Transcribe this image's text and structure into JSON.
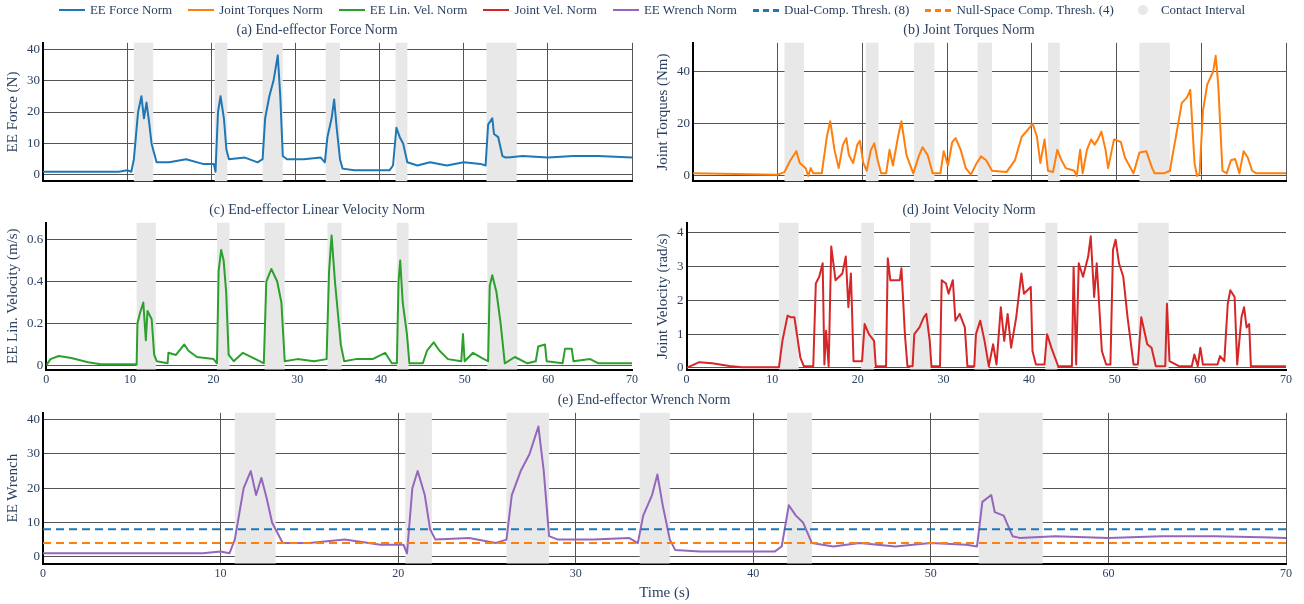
{
  "chart_data": [
    {
      "type": "line",
      "title": "(a) End-effector Force Norm",
      "ylabel": "EE Force (N)",
      "xlim": [
        0,
        70
      ],
      "xticks": [
        0,
        10,
        20,
        30,
        40,
        50,
        60,
        70
      ],
      "ylim": [
        -2,
        42
      ],
      "yticks": [
        0,
        10,
        20,
        30,
        40
      ],
      "grid": true,
      "tick_labels": "y",
      "legend": "top",
      "bands": [
        {
          "axis": "x",
          "from": 10.8,
          "to": 13.1,
          "label": "Contact Interval",
          "color": "#e8e8e8"
        },
        {
          "axis": "x",
          "from": 20.4,
          "to": 21.9,
          "color": "#e8e8e8"
        },
        {
          "axis": "x",
          "from": 26.1,
          "to": 28.5,
          "color": "#e8e8e8"
        },
        {
          "axis": "x",
          "from": 33.6,
          "to": 35.3,
          "color": "#e8e8e8"
        },
        {
          "axis": "x",
          "from": 41.9,
          "to": 43.3,
          "color": "#e8e8e8"
        },
        {
          "axis": "x",
          "from": 52.7,
          "to": 56.3,
          "color": "#e8e8e8"
        }
      ],
      "series": [
        {
          "name": "EE Force Norm",
          "color": "#1f77b4",
          "x": [
            0,
            5,
            9,
            10,
            10.5,
            10.8,
            11.3,
            11.7,
            12,
            12.3,
            12.6,
            12.9,
            13.2,
            13.5,
            15,
            17,
            19,
            20.3,
            20.5,
            20.8,
            21.1,
            21.5,
            21.8,
            22.1,
            24,
            25.5,
            26.1,
            26.4,
            26.9,
            27.4,
            27.9,
            28.2,
            28.5,
            29,
            31,
            33,
            33.5,
            33.8,
            34.3,
            34.6,
            34.9,
            35.3,
            35.6,
            37,
            39,
            40,
            41.2,
            41.6,
            42,
            42.4,
            42.8,
            43.3,
            44.5,
            46,
            48,
            50,
            52,
            52.6,
            52.9,
            53.4,
            53.6,
            54.1,
            54.6,
            55,
            57,
            60,
            63,
            66,
            70
          ],
          "values": [
            1,
            1,
            1,
            1.5,
            1,
            5,
            20,
            25,
            18,
            23,
            17,
            10,
            7,
            4,
            4,
            5,
            3.5,
            3.5,
            1,
            20,
            25,
            18,
            8,
            5,
            5.5,
            4,
            5,
            18,
            25,
            30,
            38,
            25,
            6,
            5,
            5,
            5.5,
            4,
            12,
            18,
            24,
            15,
            5,
            2,
            1.5,
            1.5,
            1.5,
            1.5,
            3,
            15,
            12,
            10,
            4,
            3,
            4,
            3,
            4,
            3.5,
            3,
            16,
            18,
            13,
            12,
            6,
            5.5,
            6,
            5.5,
            6,
            6,
            5.5
          ]
        }
      ]
    },
    {
      "type": "line",
      "title": "(b) Joint Torques Norm",
      "ylabel": "Joint Torques (Nm)",
      "xlim": [
        0,
        70
      ],
      "xticks": [
        0,
        10,
        20,
        30,
        40,
        50,
        60,
        70
      ],
      "ylim": [
        -2,
        51
      ],
      "yticks": [
        0,
        20,
        40
      ],
      "grid": true,
      "tick_labels": "y",
      "legend": "top",
      "bands": [
        {
          "axis": "x",
          "from": 10.8,
          "to": 13.1,
          "color": "#e8e8e8"
        },
        {
          "axis": "x",
          "from": 20.4,
          "to": 21.9,
          "color": "#e8e8e8"
        },
        {
          "axis": "x",
          "from": 26.1,
          "to": 28.5,
          "color": "#e8e8e8"
        },
        {
          "axis": "x",
          "from": 33.6,
          "to": 35.3,
          "color": "#e8e8e8"
        },
        {
          "axis": "x",
          "from": 41.9,
          "to": 43.3,
          "color": "#e8e8e8"
        },
        {
          "axis": "x",
          "from": 52.7,
          "to": 56.3,
          "color": "#e8e8e8"
        }
      ],
      "series": [
        {
          "name": "Joint Torques Norm",
          "color": "#ff7f0e",
          "x": [
            0,
            10,
            10.8,
            11.5,
            12.2,
            12.6,
            13.3,
            13.6,
            13.9,
            14.2,
            15.2,
            15.8,
            16.2,
            16.7,
            17.2,
            17.7,
            18.1,
            18.4,
            18.9,
            19.4,
            19.7,
            20.1,
            20.5,
            21,
            21.4,
            21.8,
            22.2,
            22.8,
            23.2,
            23.6,
            24.2,
            24.6,
            25.2,
            26,
            26.7,
            27.1,
            27.7,
            28.3,
            29.2,
            29.6,
            30.1,
            30.6,
            31,
            31.6,
            32.2,
            32.8,
            33.5,
            34,
            34.6,
            35.3,
            37,
            38,
            38.8,
            39.6,
            40.1,
            40.6,
            41,
            41.5,
            41.9,
            42.5,
            43,
            43.5,
            44,
            45,
            45.3,
            45.7,
            46,
            46.5,
            47,
            47.4,
            47.8,
            48.2,
            48.7,
            49,
            49.7,
            50.5,
            51,
            52,
            52.7,
            53.5,
            54.2,
            54.5,
            55.6,
            56.3,
            56.5,
            57,
            57.7,
            58.3,
            58.7,
            59.2,
            59.5,
            59.8,
            60.2,
            60.7,
            61.4,
            61.7,
            62,
            62.5,
            63,
            63.5,
            64,
            64.5,
            65,
            65.5,
            66,
            66.5,
            70
          ],
          "values": [
            1,
            0.5,
            1.5,
            6,
            9.5,
            5,
            3,
            0,
            3,
            1,
            1,
            15,
            21,
            10,
            3,
            12,
            14.5,
            8,
            5,
            12,
            13.5,
            5,
            2,
            10,
            12.5,
            6,
            1,
            1,
            10,
            4,
            15,
            21,
            8,
            1,
            8,
            11,
            8,
            1,
            1,
            9.5,
            4,
            13,
            14.5,
            10,
            3,
            0.5,
            5,
            7.5,
            6,
            2,
            1.5,
            6,
            15,
            18,
            20,
            15,
            5,
            14,
            2,
            1.5,
            10,
            6,
            3,
            2,
            0,
            10,
            1,
            10,
            14,
            12,
            14,
            17,
            10,
            3,
            14,
            13,
            7,
            1,
            9,
            9.5,
            3,
            1,
            1,
            2,
            6,
            15,
            28,
            30,
            33,
            5,
            0,
            1,
            25,
            35,
            40,
            46,
            35,
            2,
            1,
            6,
            6.5,
            1,
            9.5,
            7,
            2,
            1,
            1
          ]
        }
      ]
    },
    {
      "type": "line",
      "title": "(c) End-effector Linear Velocity Norm",
      "ylabel": "EE Lin. Velocity (m/s)",
      "xlim": [
        0,
        70
      ],
      "xticks": [
        0,
        10,
        20,
        30,
        40,
        50,
        60,
        70
      ],
      "ylim": [
        -0.02,
        0.68
      ],
      "yticks": [
        0,
        0.2,
        0.4,
        0.6
      ],
      "grid": "y",
      "legend": "top",
      "bands": [
        {
          "axis": "x",
          "from": 10.8,
          "to": 13.1,
          "color": "#e8e8e8"
        },
        {
          "axis": "x",
          "from": 20.4,
          "to": 21.9,
          "color": "#e8e8e8"
        },
        {
          "axis": "x",
          "from": 26.1,
          "to": 28.5,
          "color": "#e8e8e8"
        },
        {
          "axis": "x",
          "from": 33.6,
          "to": 35.3,
          "color": "#e8e8e8"
        },
        {
          "axis": "x",
          "from": 41.9,
          "to": 43.3,
          "color": "#e8e8e8"
        },
        {
          "axis": "x",
          "from": 52.7,
          "to": 56.3,
          "color": "#e8e8e8"
        }
      ],
      "series": [
        {
          "name": "EE Lin. Vel. Norm",
          "color": "#2ca02c",
          "x": [
            0,
            0.5,
            1.5,
            3,
            5,
            6.5,
            8,
            10.8,
            10.9,
            11.2,
            11.6,
            11.9,
            12.1,
            12.6,
            12.9,
            13.2,
            14.5,
            14.6,
            15.5,
            16.5,
            17,
            18,
            20,
            20.4,
            20.6,
            20.9,
            21.2,
            21.5,
            21.8,
            22.4,
            23.5,
            25.5,
            26,
            26.3,
            26.9,
            27.6,
            28.1,
            28.5,
            30,
            32,
            33.5,
            33.8,
            34.1,
            34.5,
            35.2,
            35.6,
            37,
            39,
            40.5,
            41.3,
            41.9,
            42.1,
            42.3,
            42.6,
            43.1,
            43.4,
            45,
            45.5,
            46.3,
            47,
            48,
            49.6,
            49.8,
            50,
            51,
            52.3,
            52.8,
            53,
            53.3,
            53.8,
            54.3,
            54.8,
            56,
            57.5,
            58.5,
            58.8,
            59.6,
            59.8,
            61.7,
            62,
            62.8,
            63,
            65,
            66,
            70
          ],
          "values": [
            0,
            0.03,
            0.045,
            0.035,
            0.015,
            0.005,
            0.005,
            0.005,
            0.2,
            0.25,
            0.3,
            0.12,
            0.26,
            0.22,
            0.05,
            0.02,
            0.01,
            0.06,
            0.05,
            0.1,
            0.07,
            0.04,
            0.03,
            0.01,
            0.45,
            0.55,
            0.5,
            0.35,
            0.05,
            0.02,
            0.06,
            0.02,
            0.01,
            0.4,
            0.46,
            0.4,
            0.3,
            0.02,
            0.03,
            0.02,
            0.03,
            0.45,
            0.62,
            0.4,
            0.1,
            0.02,
            0.03,
            0.03,
            0.06,
            0.01,
            0.01,
            0.4,
            0.5,
            0.3,
            0.15,
            0.01,
            0.01,
            0.07,
            0.11,
            0.07,
            0.03,
            0.02,
            0.15,
            0.02,
            0.06,
            0.03,
            0.02,
            0.38,
            0.43,
            0.35,
            0.2,
            0.01,
            0.04,
            0.01,
            0.02,
            0.09,
            0.1,
            0.02,
            0.01,
            0.08,
            0.08,
            0.02,
            0.03,
            0.01,
            0.01
          ]
        }
      ]
    },
    {
      "type": "line",
      "title": "(d) Joint Velocity Norm",
      "ylabel": "Joint Velocity (rad/s)",
      "xlim": [
        0,
        70
      ],
      "xticks": [
        0,
        10,
        20,
        30,
        40,
        50,
        60,
        70
      ],
      "ylim": [
        -0.05,
        4.3
      ],
      "yticks": [
        0,
        1,
        2,
        3,
        4
      ],
      "grid": "y",
      "legend": "top",
      "bands": [
        {
          "axis": "x",
          "from": 10.8,
          "to": 13.1,
          "color": "#e8e8e8"
        },
        {
          "axis": "x",
          "from": 20.4,
          "to": 21.9,
          "color": "#e8e8e8"
        },
        {
          "axis": "x",
          "from": 26.1,
          "to": 28.5,
          "color": "#e8e8e8"
        },
        {
          "axis": "x",
          "from": 33.6,
          "to": 35.3,
          "color": "#e8e8e8"
        },
        {
          "axis": "x",
          "from": 41.9,
          "to": 43.3,
          "color": "#e8e8e8"
        },
        {
          "axis": "x",
          "from": 52.7,
          "to": 56.3,
          "color": "#e8e8e8"
        }
      ],
      "series": [
        {
          "name": "Joint Vel. Norm",
          "color": "#d62728",
          "x": [
            0,
            1.5,
            3,
            5,
            6.5,
            10.8,
            11.2,
            11.8,
            12.2,
            12.6,
            13.3,
            13.7,
            14.8,
            15.1,
            15.5,
            15.9,
            16.1,
            16.3,
            16.6,
            16.9,
            17.4,
            18.2,
            18.6,
            18.9,
            19.2,
            19.5,
            20.5,
            20.8,
            21.3,
            21.9,
            22.1,
            23.3,
            23.5,
            23.8,
            24.9,
            25.1,
            25.5,
            25.8,
            26.4,
            26.6,
            27.2,
            27.7,
            28,
            28.4,
            28.6,
            29.6,
            29.8,
            30.3,
            30.6,
            31.1,
            31.4,
            31.9,
            32.5,
            32.8,
            33.6,
            33.8,
            34.3,
            34.8,
            35.3,
            35.8,
            36.2,
            36.7,
            37.1,
            37.5,
            37.9,
            38.5,
            39.1,
            39.4,
            40.2,
            40.4,
            40.8,
            41.8,
            42.1,
            42.6,
            43.4,
            45,
            45.2,
            45.5,
            45.8,
            46.3,
            46.9,
            47.2,
            47.6,
            47.9,
            48.5,
            49,
            49.5,
            49.8,
            50.1,
            50.5,
            51,
            51.5,
            52.2,
            52.7,
            53.1,
            53.8,
            54.3,
            54.8,
            55.9,
            56.1,
            56.4,
            57.5,
            59,
            59.3,
            59.7,
            60,
            60.3,
            62,
            62.3,
            62.8,
            63.2,
            63.5,
            64,
            64.3,
            64.8,
            65.1,
            65.4,
            65.7,
            65.9,
            70
          ],
          "values": [
            0,
            0.17,
            0.14,
            0.06,
            0.02,
            0.02,
            0.8,
            1.55,
            1.5,
            1.5,
            0.3,
            0.05,
            0.05,
            2.5,
            2.7,
            3.1,
            0.1,
            1.1,
            0.05,
            3.6,
            2.6,
            2.8,
            3.3,
            1.8,
            2.8,
            0.2,
            0.2,
            1.3,
            1,
            0.8,
            0.05,
            0.05,
            3.25,
            2.6,
            2.6,
            2.95,
            1,
            0.05,
            0.05,
            1,
            1.2,
            1.5,
            1.6,
            0.8,
            0.05,
            0.05,
            2.6,
            2.5,
            2.2,
            2.6,
            1.4,
            1.6,
            1.2,
            0.05,
            0.05,
            1,
            1.4,
            0.8,
            0.05,
            0.7,
            0.1,
            1.8,
            0.8,
            1.6,
            0.6,
            1.5,
            2.8,
            2.2,
            2.4,
            0.5,
            0.1,
            0.1,
            1,
            0.6,
            0.05,
            0.05,
            3,
            0.1,
            3.1,
            2.7,
            3.3,
            3.9,
            2.1,
            3.1,
            0.5,
            0.1,
            0.1,
            3.5,
            3.8,
            3.1,
            2.7,
            1.5,
            0.1,
            0.1,
            1.5,
            0.7,
            0.6,
            0.05,
            0.05,
            1.9,
            0.2,
            0.05,
            0.05,
            0.4,
            0.05,
            0.6,
            0.1,
            0.1,
            0.35,
            0.2,
            1.9,
            2.3,
            2.1,
            0.1,
            1.5,
            1.8,
            1.2,
            1.3,
            0.05,
            0.05
          ]
        }
      ]
    },
    {
      "type": "line",
      "title": "(e) End-effector Wrench Norm",
      "xlabel": "Time (s)",
      "ylabel": "EE Wrench",
      "xlim": [
        0,
        70
      ],
      "xticks": [
        0,
        10,
        20,
        30,
        40,
        50,
        60,
        70
      ],
      "ylim": [
        -2,
        42
      ],
      "yticks": [
        0,
        10,
        20,
        30,
        40
      ],
      "grid": true,
      "legend": "top",
      "bands": [
        {
          "axis": "x",
          "from": 10.8,
          "to": 13.1,
          "color": "#e8e8e8"
        },
        {
          "axis": "x",
          "from": 20.4,
          "to": 21.9,
          "color": "#e8e8e8"
        },
        {
          "axis": "x",
          "from": 26.1,
          "to": 28.5,
          "color": "#e8e8e8"
        },
        {
          "axis": "x",
          "from": 33.6,
          "to": 35.3,
          "color": "#e8e8e8"
        },
        {
          "axis": "x",
          "from": 41.9,
          "to": 43.3,
          "color": "#e8e8e8"
        },
        {
          "axis": "x",
          "from": 52.7,
          "to": 56.3,
          "color": "#e8e8e8"
        }
      ],
      "ref_lines": [
        {
          "axis": "y",
          "value": 8,
          "label": "Dual-Comp. Thresh. (8)",
          "color": "#1f77b4",
          "line_style": "dashed"
        },
        {
          "axis": "y",
          "value": 4,
          "label": "Null-Space Comp. Thresh. (4)",
          "color": "#ff7f0e",
          "line_style": "dashed"
        }
      ],
      "series": [
        {
          "name": "EE Wrench Norm",
          "color": "#9467bd",
          "x": [
            0,
            5,
            9,
            10,
            10.5,
            10.8,
            11.3,
            11.7,
            12,
            12.3,
            12.6,
            12.9,
            13.2,
            13.5,
            15,
            17,
            19,
            20.3,
            20.5,
            20.8,
            21.1,
            21.5,
            21.8,
            22.1,
            24,
            25.5,
            26.1,
            26.4,
            26.9,
            27.4,
            27.9,
            28.2,
            28.5,
            29,
            31,
            33,
            33.5,
            33.8,
            34.3,
            34.6,
            34.9,
            35.3,
            35.6,
            37,
            39,
            40,
            41.2,
            41.6,
            42,
            42.4,
            42.8,
            43.3,
            44.5,
            46,
            48,
            50,
            52,
            52.6,
            52.9,
            53.4,
            53.6,
            54.1,
            54.6,
            55,
            57,
            60,
            63,
            66,
            70
          ],
          "values": [
            1,
            1,
            1,
            1.5,
            1,
            5,
            20,
            25,
            18,
            23,
            17,
            10,
            7,
            4,
            4,
            5,
            3.5,
            3.5,
            1,
            20,
            25,
            18,
            8,
            5,
            5.5,
            4,
            5,
            18,
            25,
            30,
            38,
            25,
            6,
            5,
            5,
            5.5,
            4,
            12,
            18,
            24,
            15,
            5,
            2,
            1.5,
            1.5,
            1.5,
            1.5,
            3,
            15,
            12,
            10,
            4,
            3,
            4,
            3,
            4,
            3.5,
            3,
            16,
            18,
            13,
            12,
            6,
            5.5,
            6,
            5.5,
            6,
            6,
            5.5
          ]
        }
      ]
    }
  ]
}
